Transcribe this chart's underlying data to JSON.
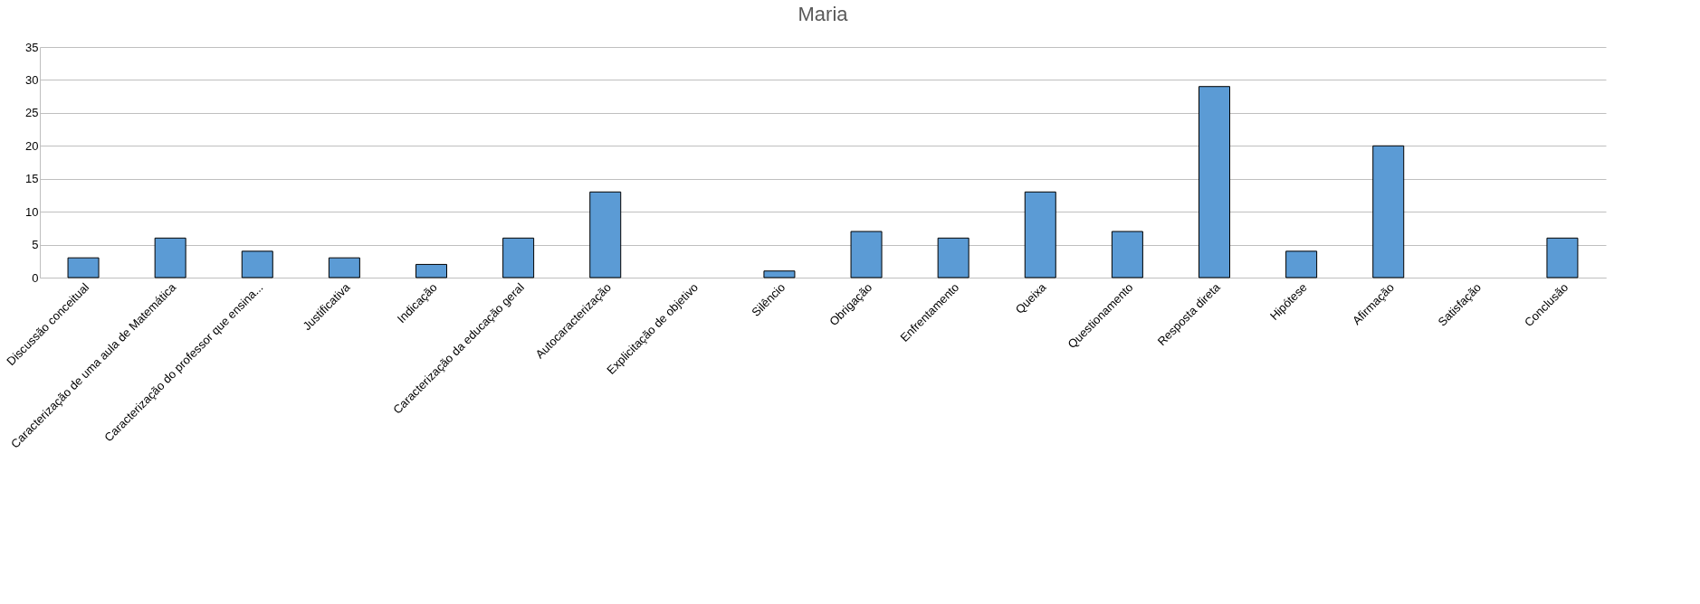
{
  "chart_data": {
    "type": "bar",
    "title": "Maria",
    "categories": [
      "Discussão conceitual",
      "Caracterização de uma aula de Matemática",
      "Caracterização do professor que ensina...",
      "Justificativa",
      "Indicação",
      "Caracterização da educação geral",
      "Autocaracterização",
      "Explicitação de objetivo",
      "Silêncio",
      "Obrigação",
      "Enfrentamento",
      "Queixa",
      "Questionamento",
      "Resposta direta",
      "Hipótese",
      "Afirmação",
      "Satisfação",
      "Conclusão"
    ],
    "values": [
      3,
      6,
      4,
      3,
      2,
      6,
      13,
      0,
      1,
      7,
      6,
      13,
      7,
      29,
      4,
      20,
      0,
      6
    ],
    "color": "#5b9bd5",
    "ylim": [
      0,
      35
    ],
    "yticks": [
      0,
      5,
      10,
      15,
      20,
      25,
      30,
      35
    ],
    "grid": "y"
  }
}
